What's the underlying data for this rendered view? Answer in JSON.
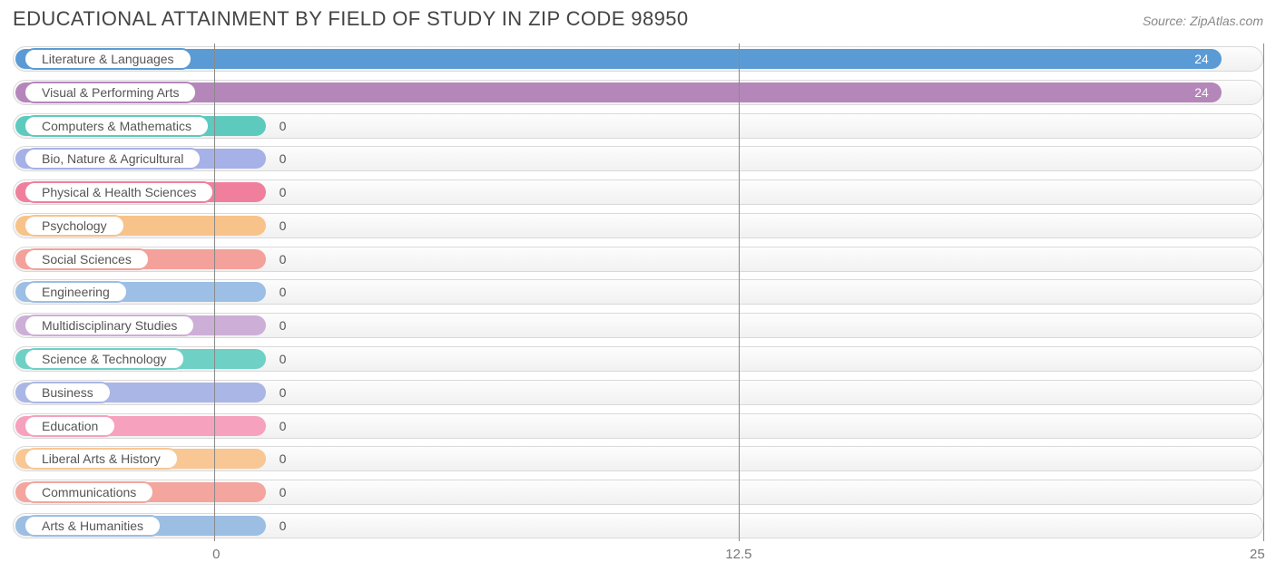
{
  "title": "EDUCATIONAL ATTAINMENT BY FIELD OF STUDY IN ZIP CODE 98950",
  "source": "Source: ZipAtlas.com",
  "chart": {
    "type": "bar",
    "orientation": "horizontal",
    "background_color": "#ffffff",
    "track_border_color": "#d9d9d9",
    "track_gradient_top": "#fdfdfd",
    "track_gradient_bottom": "#f1f1f1",
    "gridline_color": "#8a8a8a",
    "title_fontsize": 22,
    "title_color": "#444444",
    "label_fontsize": 14,
    "label_color": "#555555",
    "value_inside_color": "#ffffff",
    "value_outside_color": "#555555",
    "xlim": [
      0,
      25
    ],
    "xticks": [
      0,
      12.5,
      25
    ],
    "xtick_labels": [
      "0",
      "12.5",
      "25"
    ],
    "bar_left_percent": 16.1,
    "bar_right_percent": 100.0,
    "zero_fill_percent": 20.0,
    "rows": [
      {
        "label": "Literature & Languages",
        "value": 24,
        "color": "#5b9bd5"
      },
      {
        "label": "Visual & Performing Arts",
        "value": 24,
        "color": "#b586b9"
      },
      {
        "label": "Computers & Mathematics",
        "value": 0,
        "color": "#5ecabe"
      },
      {
        "label": "Bio, Nature & Agricultural",
        "value": 0,
        "color": "#a6b1e8"
      },
      {
        "label": "Physical & Health Sciences",
        "value": 0,
        "color": "#f07f9e"
      },
      {
        "label": "Psychology",
        "value": 0,
        "color": "#f8c38a"
      },
      {
        "label": "Social Sciences",
        "value": 0,
        "color": "#f3a19a"
      },
      {
        "label": "Engineering",
        "value": 0,
        "color": "#9dbee5"
      },
      {
        "label": "Multidisciplinary Studies",
        "value": 0,
        "color": "#cdaed6"
      },
      {
        "label": "Science & Technology",
        "value": 0,
        "color": "#6fd0c6"
      },
      {
        "label": "Business",
        "value": 0,
        "color": "#aab6e5"
      },
      {
        "label": "Education",
        "value": 0,
        "color": "#f6a1bd"
      },
      {
        "label": "Liberal Arts & History",
        "value": 0,
        "color": "#f8c793"
      },
      {
        "label": "Communications",
        "value": 0,
        "color": "#f3a59e"
      },
      {
        "label": "Arts & Humanities",
        "value": 0,
        "color": "#9cbee3"
      }
    ]
  }
}
